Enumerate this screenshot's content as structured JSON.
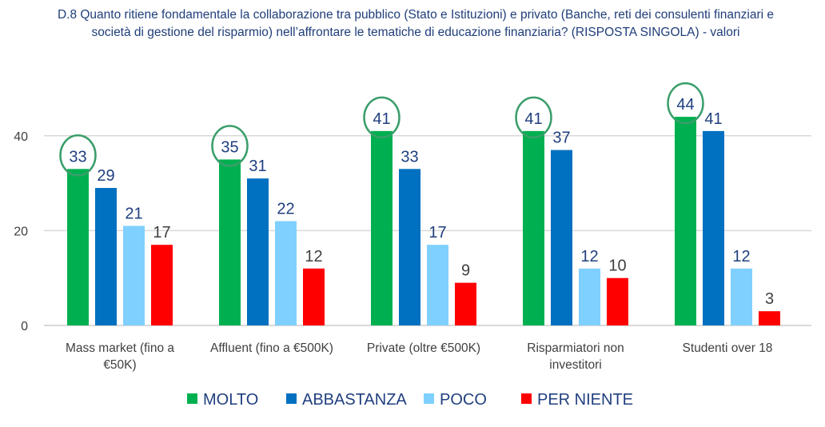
{
  "chart_data": {
    "type": "bar",
    "title": "D.8 Quanto ritiene fondamentale la collaborazione tra pubblico (Stato e Istituzioni) e privato (Banche, reti dei consulenti finanziari e società di gestione del risparmio) nell’affrontare le tematiche di educazione finanziaria? (RISPOSTA SINGOLA) - valori",
    "categories": [
      [
        "Mass market (fino a",
        "€50K)"
      ],
      [
        "Affluent (fino a €500K)"
      ],
      [
        "Private (oltre €500K)"
      ],
      [
        "Risparmiatori non",
        "investitori"
      ],
      [
        "Studenti over 18"
      ]
    ],
    "series": [
      {
        "name": "MOLTO",
        "color": "#00B050",
        "label_color": "#203F7F",
        "values": [
          33,
          35,
          41,
          41,
          44
        ]
      },
      {
        "name": "ABBASTANZA",
        "color": "#0070C0",
        "label_color": "#203F7F",
        "values": [
          29,
          31,
          33,
          37,
          41
        ]
      },
      {
        "name": "POCO",
        "color": "#7FD0FF",
        "label_color": "#203F7F",
        "values": [
          21,
          22,
          17,
          12,
          12
        ]
      },
      {
        "name": "PER NIENTE",
        "color": "#FF0000",
        "label_color": "#404040",
        "values": [
          17,
          12,
          9,
          10,
          3
        ]
      }
    ],
    "highlighted_series": "MOLTO",
    "highlight_color": "#3A9E6A",
    "yticks": [
      0,
      20,
      40
    ],
    "ylim": [
      0,
      48
    ],
    "grid": true,
    "legend": "bottom"
  }
}
